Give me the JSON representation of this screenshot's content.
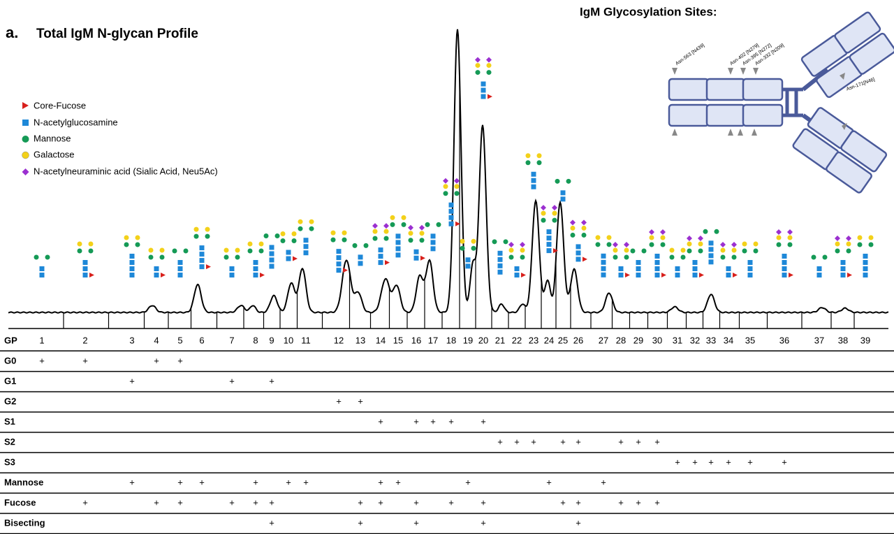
{
  "panel_label": "a.",
  "title": "Total IgM N-glycan Profile",
  "legend": [
    "Core-Fucose",
    "N-acetylglucosamine",
    "Mannose",
    "Galactose",
    "N-acetylneuraminic acid (Sialic Acid, Neu5Ac)"
  ],
  "sites": {
    "title": "IgM Glycosylation Sites:",
    "labels": [
      "Asn-563 [N439]",
      "Asn-402 [N279]",
      "Asn-395 [N272]",
      "Asn-332 [N209]",
      "Asn-171[N46]"
    ]
  },
  "table": {
    "header": "GP",
    "gp": [
      "1",
      "2",
      "3",
      "4",
      "5",
      "6",
      "7",
      "8",
      "9",
      "10",
      "11",
      "12",
      "13",
      "14",
      "15",
      "16",
      "17",
      "18",
      "19",
      "20",
      "21",
      "22",
      "23",
      "24",
      "25",
      "26",
      "27",
      "28",
      "29",
      "30",
      "31",
      "32",
      "33",
      "34",
      "35",
      "36",
      "37",
      "38",
      "39"
    ],
    "rows": [
      {
        "name": "G0",
        "marks": [
          {
            "gp": "1",
            "text": "+"
          },
          {
            "gp": "2",
            "text": "+"
          },
          {
            "gp": "4",
            "text": "+"
          },
          {
            "gp": "5",
            "text": "+"
          }
        ]
      },
      {
        "name": "G1",
        "marks": [
          {
            "gp": "3",
            "text": "+"
          },
          {
            "gp": "7",
            "text": "+"
          },
          {
            "gp": "9",
            "text": "+"
          }
        ]
      },
      {
        "name": "G2",
        "marks": [
          {
            "gp": "12",
            "text": "+"
          },
          {
            "gp": "13",
            "text": "+"
          }
        ]
      },
      {
        "name": "S1",
        "marks": [
          {
            "gp": "14",
            "text": "+"
          },
          {
            "gp": "16",
            "text": "+"
          },
          {
            "gp": "17",
            "text": "+"
          },
          {
            "gp": "18",
            "text": "+"
          },
          {
            "gp": "20",
            "text": "+"
          }
        ]
      },
      {
        "name": "S2",
        "marks": [
          {
            "gp": "21",
            "text": "+"
          },
          {
            "gp": "22",
            "text": "+"
          },
          {
            "gp": "23",
            "text": "+"
          },
          {
            "gp": "25",
            "text": "+"
          },
          {
            "gp": "26",
            "text": "+"
          },
          {
            "gp": "28",
            "text": "+"
          },
          {
            "gp": "29",
            "text": "+"
          },
          {
            "gp": "30",
            "text": "+"
          }
        ]
      },
      {
        "name": "S3",
        "marks": [
          {
            "gp": "31",
            "text": "+"
          },
          {
            "gp": "32",
            "text": "+"
          },
          {
            "gp": "33",
            "text": "+"
          },
          {
            "gp": "34",
            "text": "+"
          },
          {
            "gp": "35",
            "text": "+"
          },
          {
            "gp": "36",
            "text": "+"
          }
        ]
      },
      {
        "name": "Mannose",
        "marks": [
          {
            "gp": "3",
            "text": "+"
          },
          {
            "gp": "5",
            "text": "+"
          },
          {
            "gp": "6",
            "text": "+"
          },
          {
            "gp": "8",
            "text": "+"
          },
          {
            "gp": "10",
            "text": "+"
          },
          {
            "gp": "11",
            "text": "+"
          },
          {
            "gp": "14",
            "text": "+"
          },
          {
            "gp": "15",
            "text": "+"
          },
          {
            "gp": "19",
            "text": "+"
          },
          {
            "gp": "24",
            "text": "+"
          },
          {
            "gp": "27",
            "text": "+"
          }
        ]
      },
      {
        "name": "Fucose",
        "marks": [
          {
            "gp": "2",
            "text": "+"
          },
          {
            "gp": "4",
            "text": "+"
          },
          {
            "gp": "5",
            "text": "+"
          },
          {
            "gp": "7",
            "text": "+"
          },
          {
            "gp": "8",
            "text": "+"
          },
          {
            "gp": "9",
            "text": "+"
          },
          {
            "gp": "13",
            "text": "+"
          },
          {
            "gp": "14",
            "text": "+"
          },
          {
            "gp": "16",
            "text": "+"
          },
          {
            "gp": "18",
            "text": "+"
          },
          {
            "gp": "20",
            "text": "+"
          },
          {
            "gp": "25",
            "text": "+"
          },
          {
            "gp": "26",
            "text": "+"
          },
          {
            "gp": "28",
            "text": "+"
          },
          {
            "gp": "29",
            "text": "+"
          },
          {
            "gp": "30",
            "text": "+"
          }
        ]
      },
      {
        "name": "Bisecting",
        "marks": [
          {
            "gp": "9",
            "text": "+"
          },
          {
            "gp": "13",
            "text": "+"
          },
          {
            "gp": "16",
            "text": "+"
          },
          {
            "gp": "20",
            "text": "+"
          },
          {
            "gp": "26",
            "text": "+"
          }
        ]
      }
    ]
  }
}
